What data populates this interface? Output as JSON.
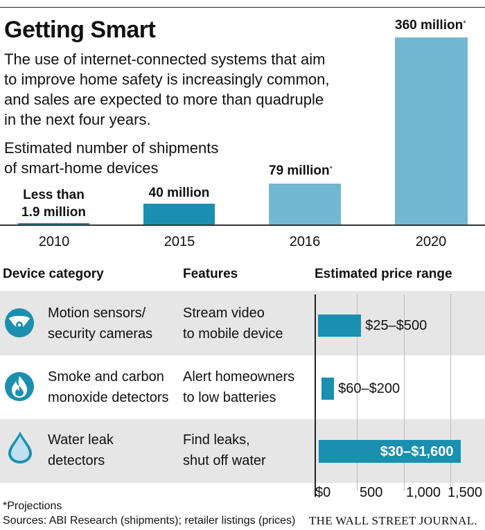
{
  "title": "Getting Smart",
  "description": [
    "The use of internet-connected systems that aim",
    "to improve home safety is increasingly common,",
    "and sales are expected to more than quadruple",
    "in the next four years."
  ],
  "subtitle": [
    "Estimated number of shipments",
    "of smart-home devices"
  ],
  "colors": {
    "dark_bar": "#1a8fb0",
    "light_bar": "#74b7d3",
    "row_bg": "#e6e6e6"
  },
  "chart_data": [
    {
      "type": "bar",
      "title": "Estimated number of shipments of smart-home devices",
      "categories": [
        "2010",
        "2015",
        "2016",
        "2020"
      ],
      "values": [
        1.9,
        40,
        79,
        360
      ],
      "projection": [
        false,
        false,
        true,
        true
      ],
      "value_labels": [
        "Less than 1.9 million",
        "40 million",
        "79 million*",
        "360 million*"
      ],
      "ylim": [
        0,
        360
      ]
    },
    {
      "type": "bar",
      "orientation": "horizontal",
      "title": "Estimated price range",
      "categories": [
        "Motion sensors/ security cameras",
        "Smoke and carbon monoxide detectors",
        "Water leak detectors"
      ],
      "ranges": [
        [
          25,
          500
        ],
        [
          60,
          200
        ],
        [
          30,
          1600
        ]
      ],
      "value_labels": [
        "$25–$500",
        "$60–$200",
        "$30–$1,600"
      ],
      "xticks": [
        "$0",
        "500",
        "1,000",
        "1,500"
      ],
      "xlim": [
        0,
        1700
      ]
    }
  ],
  "table": {
    "headers": {
      "category": "Device category",
      "features": "Features",
      "price": "Estimated price range"
    },
    "rows": [
      {
        "icon": "security-camera-icon",
        "category": [
          "Motion sensors/",
          "security cameras"
        ],
        "features": [
          "Stream video",
          "to mobile device"
        ]
      },
      {
        "icon": "flame-icon",
        "category": [
          "Smoke and carbon",
          "monoxide detectors"
        ],
        "features": [
          "Alert homeowners",
          "to low batteries"
        ]
      },
      {
        "icon": "water-drop-icon",
        "category": [
          "Water leak",
          "detectors"
        ],
        "features": [
          "Find leaks,",
          "shut off water"
        ]
      }
    ]
  },
  "footnotes": {
    "projection": "*Projections",
    "sources": "Sources: ABI Research (shipments); retailer listings (prices)"
  },
  "brand": "THE WALL STREET JOURNAL."
}
